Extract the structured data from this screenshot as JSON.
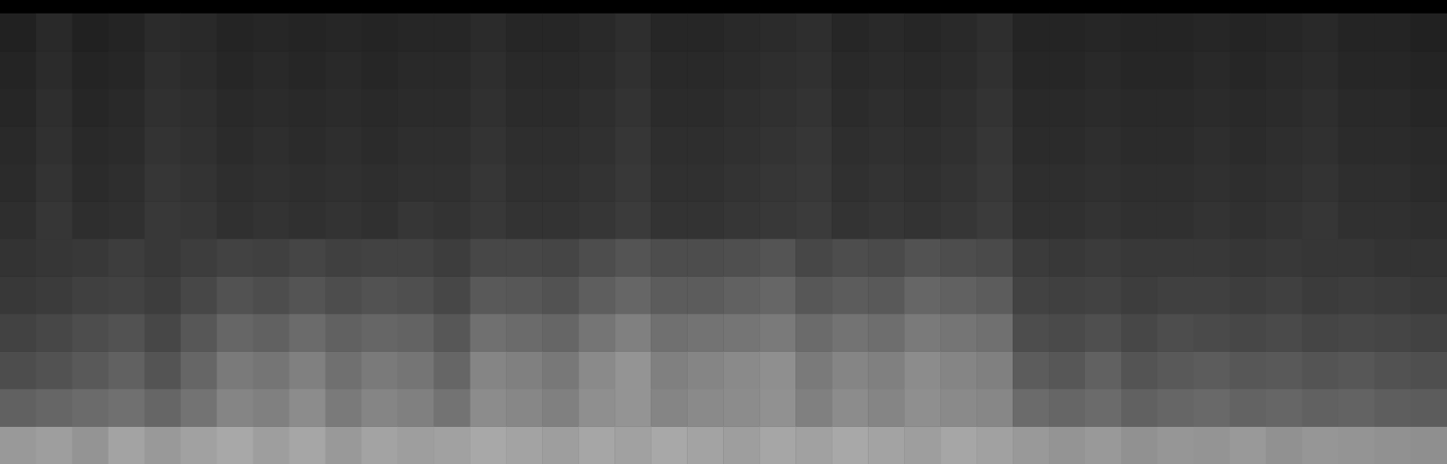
{
  "chart_data": {
    "type": "heatmap",
    "tick_labels": false,
    "grid": false,
    "clim": [
      0,
      100
    ],
    "z": [
      [
        60,
        62,
        58,
        64,
        60,
        63,
        66,
        62,
        65,
        60,
        64,
        62,
        63,
        66,
        64,
        62,
        65,
        63,
        66,
        64,
        62,
        65,
        63,
        66,
        64,
        62,
        65,
        63,
        60,
        58,
        60,
        57,
        59,
        58,
        60,
        57,
        59,
        58,
        57,
        56
      ],
      [
        38,
        40,
        42,
        44,
        40,
        45,
        52,
        50,
        55,
        48,
        52,
        50,
        45,
        55,
        53,
        50,
        56,
        58,
        52,
        54,
        55,
        57,
        50,
        55,
        52,
        56,
        54,
        53,
        42,
        40,
        42,
        38,
        40,
        41,
        39,
        40,
        38,
        39,
        37,
        36
      ],
      [
        30,
        32,
        35,
        38,
        33,
        40,
        48,
        46,
        50,
        44,
        48,
        46,
        40,
        52,
        50,
        47,
        54,
        58,
        50,
        52,
        54,
        56,
        48,
        52,
        50,
        55,
        52,
        50,
        36,
        34,
        38,
        33,
        35,
        36,
        34,
        35,
        33,
        34,
        32,
        31
      ],
      [
        26,
        28,
        30,
        32,
        28,
        34,
        40,
        38,
        42,
        38,
        40,
        39,
        34,
        44,
        42,
        40,
        46,
        50,
        44,
        45,
        46,
        48,
        42,
        45,
        43,
        48,
        46,
        44,
        30,
        29,
        31,
        28,
        30,
        29,
        28,
        29,
        27,
        28,
        27,
        26
      ],
      [
        22,
        23,
        25,
        26,
        24,
        28,
        32,
        30,
        33,
        30,
        32,
        31,
        28,
        35,
        34,
        32,
        37,
        40,
        36,
        36,
        38,
        40,
        34,
        36,
        35,
        40,
        38,
        36,
        26,
        25,
        26,
        24,
        25,
        25,
        24,
        25,
        23,
        24,
        23,
        22
      ],
      [
        20,
        21,
        22,
        24,
        22,
        24,
        26,
        25,
        27,
        25,
        26,
        26,
        24,
        28,
        28,
        27,
        30,
        33,
        30,
        30,
        31,
        33,
        28,
        30,
        29,
        32,
        30,
        29,
        23,
        22,
        23,
        22,
        22,
        22,
        21,
        22,
        21,
        21,
        20,
        20
      ],
      [
        18,
        21,
        18,
        19,
        22,
        21,
        19,
        20,
        19,
        20,
        19,
        21,
        20,
        22,
        20,
        20,
        21,
        23,
        20,
        20,
        21,
        22,
        23,
        20,
        21,
        20,
        21,
        23,
        19,
        19,
        20,
        19,
        19,
        20,
        19,
        20,
        21,
        19,
        19,
        18
      ],
      [
        17,
        20,
        17,
        18,
        21,
        20,
        18,
        19,
        18,
        19,
        18,
        19,
        19,
        21,
        19,
        19,
        20,
        22,
        19,
        19,
        20,
        21,
        22,
        19,
        20,
        19,
        20,
        22,
        18,
        18,
        19,
        18,
        18,
        19,
        18,
        19,
        20,
        18,
        18,
        17
      ],
      [
        16,
        19,
        16,
        17,
        20,
        19,
        17,
        18,
        17,
        18,
        17,
        18,
        18,
        20,
        18,
        18,
        19,
        21,
        18,
        18,
        19,
        20,
        21,
        18,
        19,
        18,
        19,
        21,
        17,
        17,
        18,
        17,
        17,
        18,
        17,
        18,
        19,
        17,
        17,
        16
      ],
      [
        15,
        18,
        15,
        16,
        19,
        18,
        16,
        17,
        16,
        17,
        16,
        17,
        17,
        19,
        17,
        17,
        18,
        20,
        17,
        17,
        18,
        19,
        20,
        17,
        18,
        17,
        18,
        20,
        16,
        16,
        17,
        16,
        16,
        17,
        16,
        17,
        18,
        16,
        16,
        15
      ],
      [
        14,
        17,
        14,
        15,
        18,
        17,
        15,
        16,
        15,
        16,
        15,
        16,
        16,
        18,
        16,
        16,
        17,
        19,
        16,
        16,
        17,
        18,
        19,
        16,
        17,
        16,
        17,
        19,
        15,
        15,
        16,
        15,
        15,
        16,
        15,
        16,
        17,
        15,
        15,
        14
      ],
      [
        13,
        16,
        13,
        14,
        17,
        16,
        14,
        15,
        14,
        15,
        14,
        15,
        15,
        17,
        15,
        15,
        16,
        18,
        15,
        15,
        16,
        17,
        18,
        15,
        16,
        15,
        16,
        18,
        14,
        14,
        15,
        14,
        14,
        15,
        14,
        15,
        16,
        14,
        14,
        13
      ]
    ]
  }
}
